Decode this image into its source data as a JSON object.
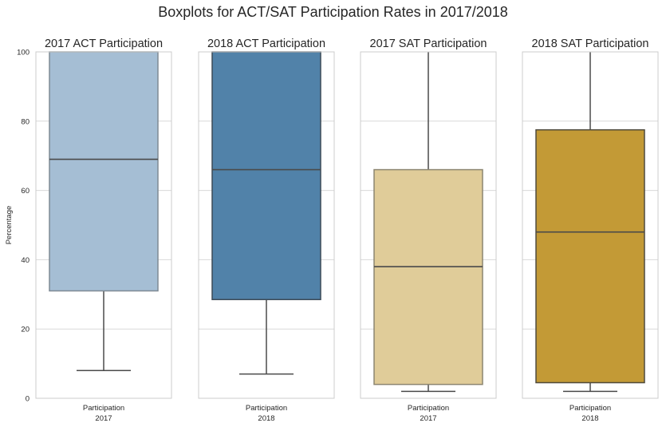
{
  "chart_data": {
    "suptitle": "Boxplots for ACT/SAT Participation Rates in 2017/2018",
    "ylabel": "Percentage",
    "ylim": [
      0,
      100
    ],
    "yticks": [
      0,
      20,
      40,
      60,
      80,
      100
    ],
    "grid": true,
    "sharey": true,
    "panels": [
      {
        "type": "box",
        "title": "2017 ACT Participation",
        "xlabel": "2017",
        "category": "Participation",
        "color": "#a5bed4",
        "edge": "#7f8a94",
        "whisker_low": 8,
        "q1": 31,
        "median": 69,
        "q3": 100,
        "whisker_high": 100
      },
      {
        "type": "box",
        "title": "2018 ACT Participation",
        "xlabel": "2018",
        "category": "Participation",
        "color": "#5182a9",
        "edge": "#3c4a57",
        "whisker_low": 7,
        "q1": 28.5,
        "median": 66,
        "q3": 100,
        "whisker_high": 100
      },
      {
        "type": "box",
        "title": "2017 SAT Participation",
        "xlabel": "2017",
        "category": "Participation",
        "color": "#e0cc99",
        "edge": "#8c8570",
        "whisker_low": 2,
        "q1": 4,
        "median": 38,
        "q3": 66,
        "whisker_high": 100
      },
      {
        "type": "box",
        "title": "2018 SAT Participation",
        "xlabel": "2018",
        "category": "Participation",
        "color": "#c39a36",
        "edge": "#4f4a3d",
        "whisker_low": 2,
        "q1": 4.5,
        "median": 48,
        "q3": 77.5,
        "whisker_high": 100
      }
    ]
  }
}
